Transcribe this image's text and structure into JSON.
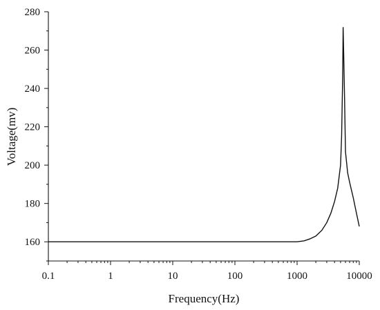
{
  "chart_data": {
    "type": "line",
    "title": "",
    "xlabel": "Frequency(Hz)",
    "ylabel": "Voltage(mv)",
    "x_scale": "log",
    "xlim": [
      0.1,
      10000
    ],
    "ylim": [
      150,
      280
    ],
    "x_ticks": [
      0.1,
      1,
      10,
      100,
      1000,
      10000
    ],
    "x_tick_labels": [
      "0.1",
      "1",
      "10",
      "100",
      "1000",
      "10000"
    ],
    "y_ticks": [
      160,
      180,
      200,
      220,
      240,
      260,
      280
    ],
    "y_tick_labels": [
      "160",
      "180",
      "200",
      "220",
      "240",
      "260",
      "280"
    ],
    "grid": false,
    "legend": "none",
    "line_color": "#111111",
    "series": [
      {
        "x": [
          0.1,
          1,
          10,
          100,
          500,
          1000,
          1300,
          1600,
          2000,
          2500,
          3000,
          3500,
          4000,
          4500,
          5000,
          5200,
          5400,
          5500,
          5600,
          5800,
          6000,
          6500,
          7000,
          8000,
          9000,
          10000
        ],
        "y": [
          160,
          160,
          160,
          160,
          160,
          160,
          160.5,
          161.5,
          163,
          166,
          170,
          175,
          181,
          188,
          200,
          215,
          245,
          272,
          260,
          235,
          207,
          196,
          191,
          183,
          175,
          168
        ]
      }
    ]
  }
}
